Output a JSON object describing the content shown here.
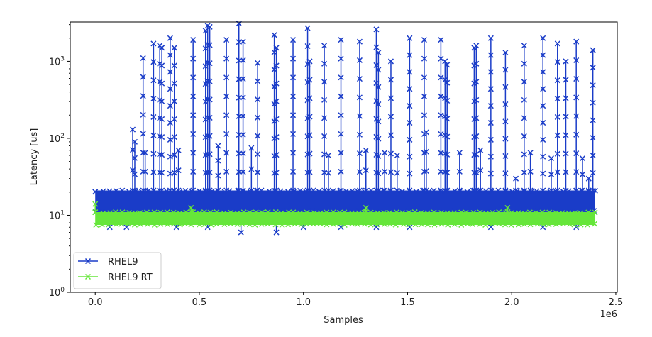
{
  "chart_data": {
    "type": "line",
    "title": "",
    "xlabel": "Samples",
    "ylabel": "Latency [us]",
    "x_offset_label": "1e6",
    "xscale": "linear",
    "yscale": "log",
    "xlim": [
      -0.12,
      2.507
    ],
    "ylim": [
      1,
      3240
    ],
    "x_ticks": [
      0.0,
      0.5,
      1.0,
      1.5,
      2.0,
      2.5
    ],
    "x_tick_labels": [
      "0.0",
      "0.5",
      "1.0",
      "1.5",
      "2.0",
      "2.5"
    ],
    "y_ticks": [
      1,
      10,
      100,
      1000
    ],
    "y_tick_labels": [
      {
        "base": "10",
        "exp": "0"
      },
      {
        "base": "10",
        "exp": "1"
      },
      {
        "base": "10",
        "exp": "2"
      },
      {
        "base": "10",
        "exp": "3"
      }
    ],
    "grid": false,
    "legend_position": "lower-left",
    "x_units": "samples (×1e6)",
    "series": [
      {
        "name": "RHEL9",
        "color": "#1a3cc8",
        "marker": "x",
        "x_range": [
          0,
          2.4
        ],
        "baseline_band": [
          11,
          21
        ],
        "spikes": [
          [
            0.18,
            130
          ],
          [
            0.19,
            90
          ],
          [
            0.23,
            1100
          ],
          [
            0.28,
            1700
          ],
          [
            0.31,
            1600
          ],
          [
            0.32,
            1500
          ],
          [
            0.36,
            2000
          ],
          [
            0.38,
            1500
          ],
          [
            0.47,
            1900
          ],
          [
            0.53,
            2500
          ],
          [
            0.54,
            2900
          ],
          [
            0.55,
            2800
          ],
          [
            0.63,
            1900
          ],
          [
            0.69,
            3100
          ],
          [
            0.71,
            1800
          ],
          [
            0.78,
            950
          ],
          [
            0.86,
            2200
          ],
          [
            0.87,
            1500
          ],
          [
            0.95,
            1900
          ],
          [
            1.02,
            2700
          ],
          [
            1.03,
            1000
          ],
          [
            1.1,
            1600
          ],
          [
            1.18,
            1900
          ],
          [
            1.27,
            1800
          ],
          [
            1.35,
            2600
          ],
          [
            1.36,
            1300
          ],
          [
            1.42,
            1000
          ],
          [
            1.51,
            2000
          ],
          [
            1.58,
            1900
          ],
          [
            1.66,
            1900
          ],
          [
            1.68,
            1000
          ],
          [
            1.69,
            900
          ],
          [
            1.82,
            1500
          ],
          [
            1.83,
            1600
          ],
          [
            1.9,
            2000
          ],
          [
            1.97,
            1300
          ],
          [
            2.06,
            1600
          ],
          [
            2.15,
            2000
          ],
          [
            2.22,
            1700
          ],
          [
            2.26,
            1000
          ],
          [
            2.31,
            1800
          ],
          [
            2.39,
            1400
          ],
          [
            0.24,
            65
          ],
          [
            0.4,
            70
          ],
          [
            0.59,
            80
          ],
          [
            0.75,
            75
          ],
          [
            1.12,
            60
          ],
          [
            1.3,
            70
          ],
          [
            1.39,
            65
          ],
          [
            1.45,
            60
          ],
          [
            1.59,
            120
          ],
          [
            1.75,
            65
          ],
          [
            1.85,
            70
          ],
          [
            2.02,
            30
          ],
          [
            2.09,
            65
          ],
          [
            2.19,
            55
          ],
          [
            2.34,
            55
          ],
          [
            2.37,
            30
          ]
        ],
        "low_outliers": [
          [
            0.07,
            7
          ],
          [
            0.15,
            7
          ],
          [
            0.39,
            7
          ],
          [
            0.54,
            7
          ],
          [
            0.7,
            6
          ],
          [
            0.87,
            6
          ],
          [
            1.0,
            7
          ],
          [
            1.18,
            7
          ],
          [
            1.35,
            7
          ],
          [
            1.51,
            7
          ],
          [
            1.9,
            7
          ],
          [
            2.15,
            7
          ],
          [
            2.31,
            7
          ]
        ]
      },
      {
        "name": "RHEL9 RT",
        "color": "#66e63a",
        "marker": "x",
        "x_range": [
          0,
          2.4
        ],
        "baseline_band": [
          7.5,
          11
        ],
        "spikes": [
          [
            0.0,
            14
          ],
          [
            0.46,
            12.5
          ],
          [
            1.3,
            12.5
          ],
          [
            1.98,
            12.5
          ]
        ]
      }
    ]
  }
}
